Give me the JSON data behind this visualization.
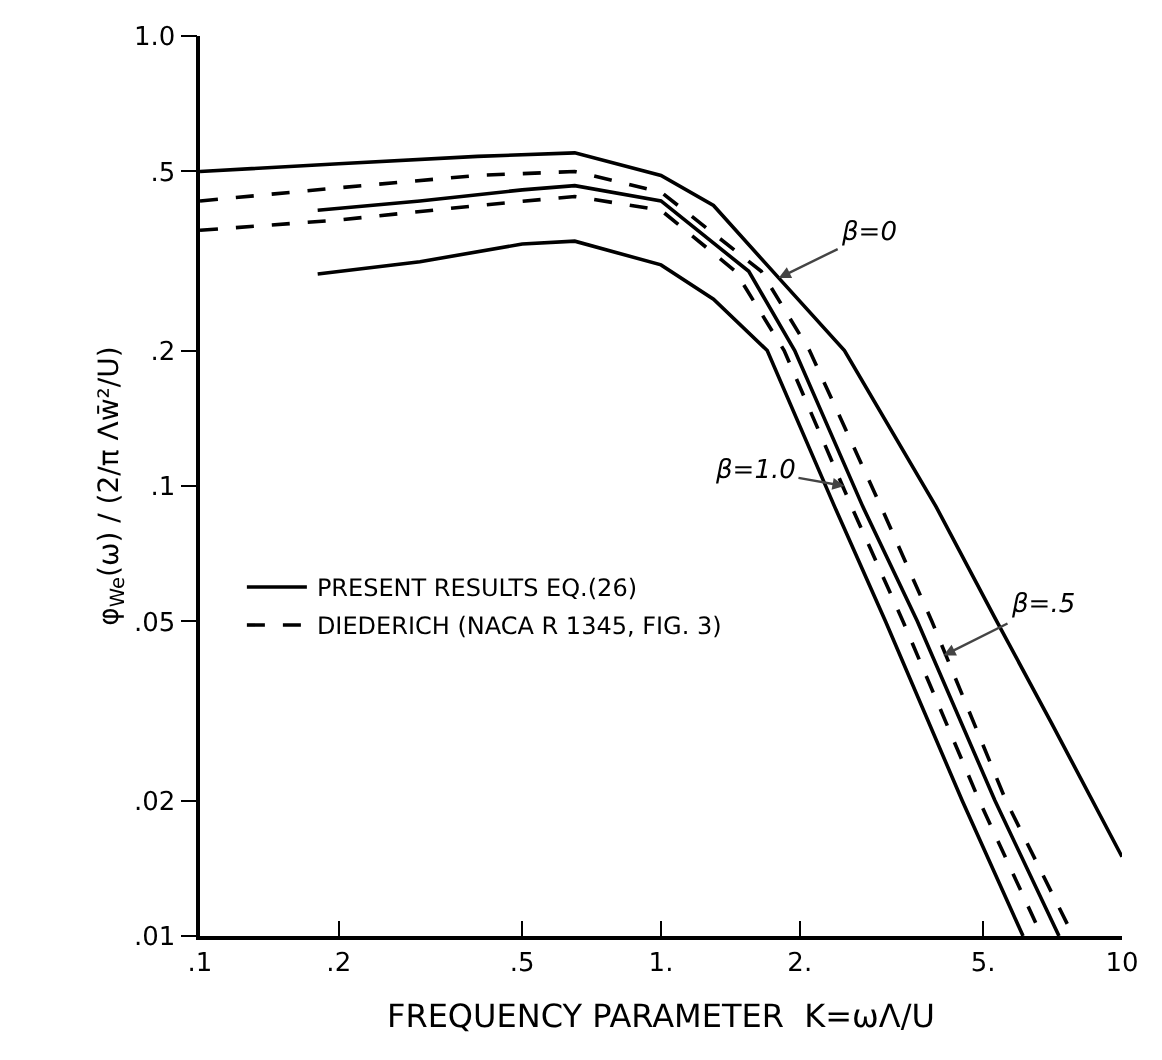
{
  "chart_data": {
    "type": "line",
    "xlabel": "FREQUENCY PARAMETER  K=ωΛ/U",
    "ylabel": "φ$_{We}$(ω) / (2/π Λw̄²/U)",
    "log": "xy",
    "grid": false,
    "legend": "left",
    "marker": "none",
    "xlim": [
      0.1,
      10
    ],
    "ylim": [
      0.01,
      1
    ],
    "xticks": [
      {
        "value": 0.1,
        "label": ".1"
      },
      {
        "value": 0.2,
        "label": ".2"
      },
      {
        "value": 0.5,
        "label": ".5"
      },
      {
        "value": 1,
        "label": "1."
      },
      {
        "value": 2,
        "label": "2."
      },
      {
        "value": 5,
        "label": "5."
      },
      10
    ],
    "yticks": [
      {
        "value": 0.01,
        "label": ".01"
      },
      {
        "value": 0.02,
        "label": ".02"
      },
      {
        "value": 0.05,
        "label": ".05"
      },
      {
        "value": 0.1,
        "label": ".1"
      },
      {
        "value": 0.2,
        "label": ".2"
      },
      {
        "value": 0.5,
        "label": ".5"
      },
      {
        "value": 1,
        "label": "1.0"
      }
    ],
    "series": [
      {
        "name": "PRESENT RESULTS EQ.(26)",
        "color": "#000000",
        "line_style": "solid",
        "x": [
          0.1,
          0.2,
          0.4,
          0.65,
          1,
          1.3,
          1.8,
          2.5,
          3.95,
          5.35,
          7,
          10
        ],
        "values": [
          0.5,
          0.52,
          0.54,
          0.55,
          0.49,
          0.42,
          0.29,
          0.2,
          0.09,
          0.05,
          0.03,
          0.015
        ]
      },
      {
        "name": "DIEDERICH (NACA R 1345, FIG. 3)",
        "color": "#000000",
        "line_style": "dashed",
        "x": [
          0.1,
          0.2,
          0.4,
          0.65,
          1,
          1.65,
          2.1,
          3.0,
          3.87,
          5.6,
          7.84
        ],
        "values": [
          0.43,
          0.46,
          0.49,
          0.5,
          0.45,
          0.3,
          0.2,
          0.09,
          0.05,
          0.02,
          0.01
        ]
      },
      {
        "color": "#000000",
        "line_style": "solid",
        "x": [
          0.18,
          0.3,
          0.5,
          0.65,
          1,
          1.55,
          1.95,
          2.74,
          3.6,
          5.3,
          7.3
        ],
        "values": [
          0.41,
          0.43,
          0.455,
          0.465,
          0.43,
          0.3,
          0.2,
          0.09,
          0.05,
          0.02,
          0.01
        ]
      },
      {
        "color": "#000000",
        "line_style": "dashed",
        "x": [
          0.1,
          0.2,
          0.4,
          0.65,
          1,
          1.45,
          1.85,
          2.59,
          3.35,
          4.9,
          6.7
        ],
        "values": [
          0.37,
          0.39,
          0.42,
          0.44,
          0.41,
          0.3,
          0.2,
          0.09,
          0.05,
          0.02,
          0.01
        ]
      },
      {
        "color": "#000000",
        "line_style": "solid",
        "x": [
          0.18,
          0.3,
          0.5,
          0.65,
          1,
          1.3,
          1.7,
          2.38,
          3.07,
          4.5,
          6.1
        ],
        "values": [
          0.296,
          0.315,
          0.345,
          0.35,
          0.31,
          0.26,
          0.2,
          0.09,
          0.05,
          0.02,
          0.01
        ]
      }
    ],
    "annotations": [
      {
        "text": "β=0",
        "x": 1.8,
        "y": 0.29
      },
      {
        "text": "β=1.0",
        "x": 2.5,
        "y": 0.1
      },
      {
        "text": "β=.5",
        "x": 4.1,
        "y": 0.042
      }
    ]
  }
}
